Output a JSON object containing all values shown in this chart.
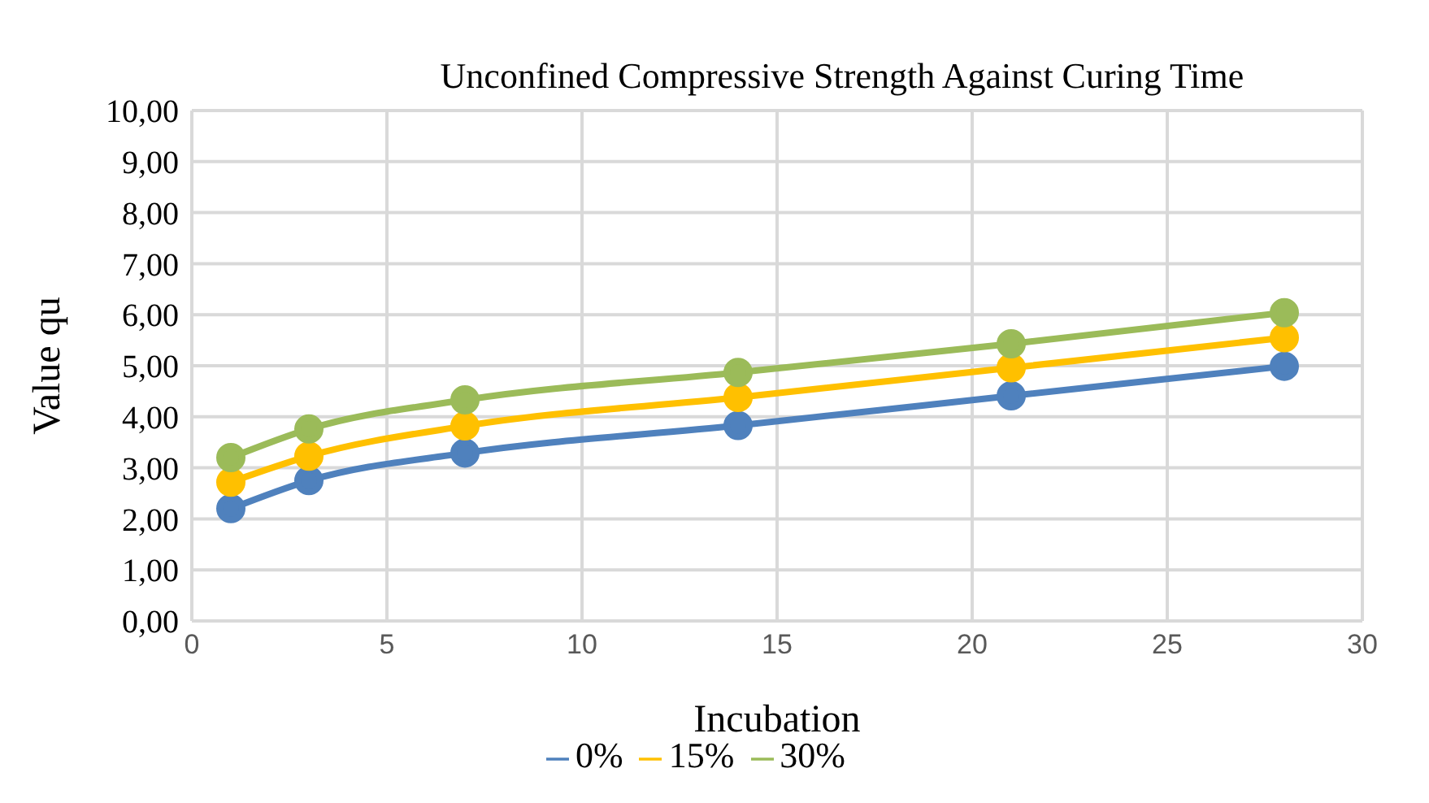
{
  "chart_data": {
    "type": "line",
    "title": "Unconfined Compressive Strength Against Curing Time",
    "xlabel": "Incubation",
    "ylabel": "Value qu",
    "x": [
      1,
      3,
      7,
      14,
      21,
      28
    ],
    "series": [
      {
        "name": "0%",
        "color": "#4f81bd",
        "values": [
          2.2,
          2.75,
          3.29,
          3.83,
          4.41,
          4.99
        ]
      },
      {
        "name": "15%",
        "color": "#ffc000",
        "values": [
          2.72,
          3.23,
          3.82,
          4.38,
          4.96,
          5.55
        ]
      },
      {
        "name": "30%",
        "color": "#9bbb59",
        "values": [
          3.2,
          3.76,
          4.33,
          4.87,
          5.43,
          6.04
        ]
      }
    ],
    "xlim": [
      0,
      30
    ],
    "xticks": [
      0,
      5,
      10,
      15,
      20,
      25,
      30
    ],
    "ylim": [
      0,
      10
    ],
    "yticks": [
      {
        "value": 0,
        "label": "0,00"
      },
      {
        "value": 1,
        "label": "1,00"
      },
      {
        "value": 2,
        "label": "2,00"
      },
      {
        "value": 3,
        "label": "3,00"
      },
      {
        "value": 4,
        "label": "4,00"
      },
      {
        "value": 5,
        "label": "5,00"
      },
      {
        "value": 6,
        "label": "6,00"
      },
      {
        "value": 7,
        "label": "7,00"
      },
      {
        "value": 8,
        "label": "8,00"
      },
      {
        "value": 9,
        "label": "9,00"
      },
      {
        "value": 10,
        "label": "10,00"
      }
    ],
    "grid": true,
    "legend": "bottom",
    "marker": "circle",
    "line_style": "solid"
  }
}
